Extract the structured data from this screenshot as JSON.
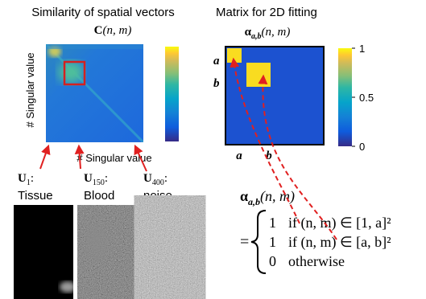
{
  "left_panel": {
    "title": "Similarity of spatial vectors",
    "matrix_label": {
      "symbol": "C",
      "args": "(n, m)"
    },
    "y_axis_label": "# Singular value",
    "x_axis_label": "# Singular value",
    "separator": ":",
    "vectors": [
      {
        "symbol": "U",
        "subscript": "1",
        "label": "Tissue"
      },
      {
        "symbol": "U",
        "subscript": "150",
        "label": "Blood"
      },
      {
        "symbol": "U",
        "subscript": "400",
        "label": "noise"
      }
    ]
  },
  "right_panel": {
    "title": "Matrix for 2D fitting",
    "matrix_label": {
      "symbol": "α",
      "subscript": "a,b",
      "args": "(n, m)"
    },
    "row_labels": [
      "a",
      "b"
    ],
    "col_labels": [
      "a",
      "b"
    ],
    "colorbar_ticks": [
      1,
      0.5,
      0
    ],
    "equation": {
      "equals": "=",
      "cases": [
        {
          "value": "1",
          "condition": "if (n, m) ∈ [1, a]²"
        },
        {
          "value": "1",
          "condition": "if (n, m) ∈ [a, b]²"
        },
        {
          "value": "0",
          "condition": "otherwise"
        }
      ]
    }
  }
}
